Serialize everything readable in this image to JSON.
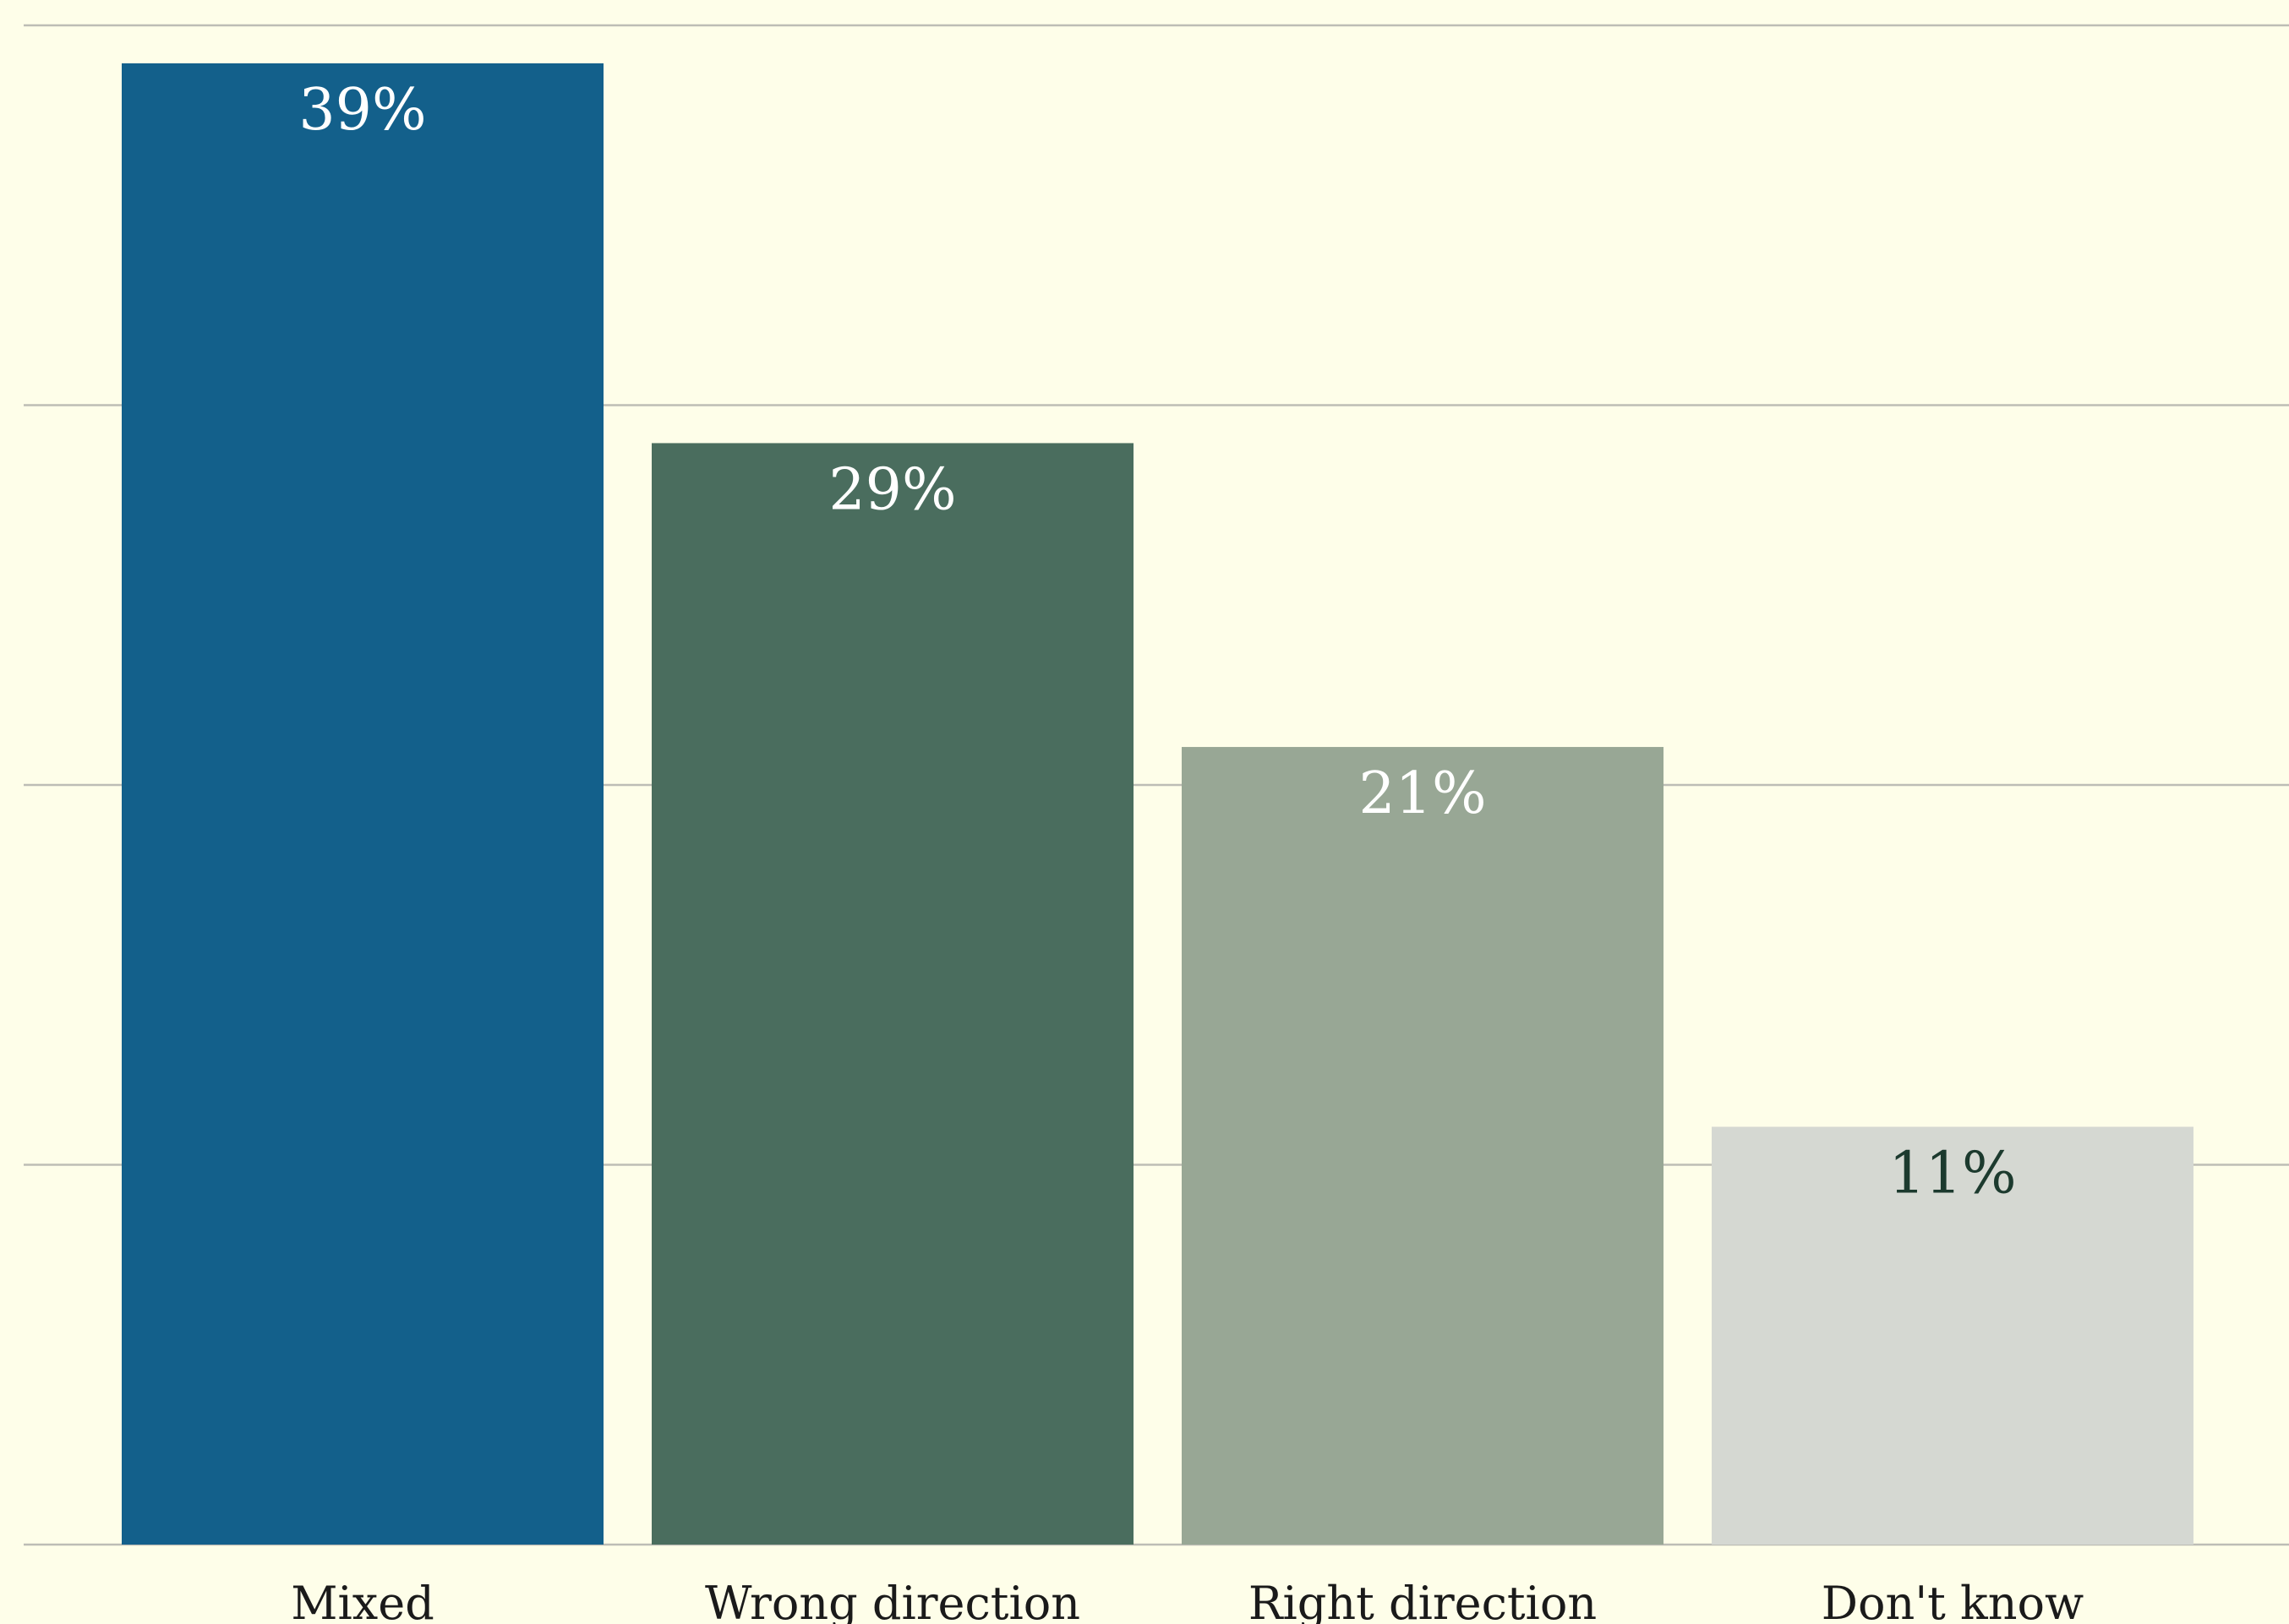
{
  "chart_data": {
    "type": "bar",
    "categories": [
      "Mixed",
      "Wrong direction",
      "Right direction",
      "Don't know"
    ],
    "values": [
      39,
      29,
      21,
      11
    ],
    "value_labels": [
      "39%",
      "29%",
      "21%",
      "11%"
    ],
    "ylim": [
      0,
      40
    ],
    "yticks": [
      0,
      10,
      20,
      30,
      40
    ],
    "grid": true,
    "tick_labels_y": false,
    "colors": [
      "#13608b",
      "#4a6d5e",
      "#98a795",
      "#d5d8d2"
    ],
    "label_colors": [
      "#ffffff",
      "#ffffff",
      "#ffffff",
      "#1c3a2e"
    ],
    "background": "#fefee9"
  }
}
